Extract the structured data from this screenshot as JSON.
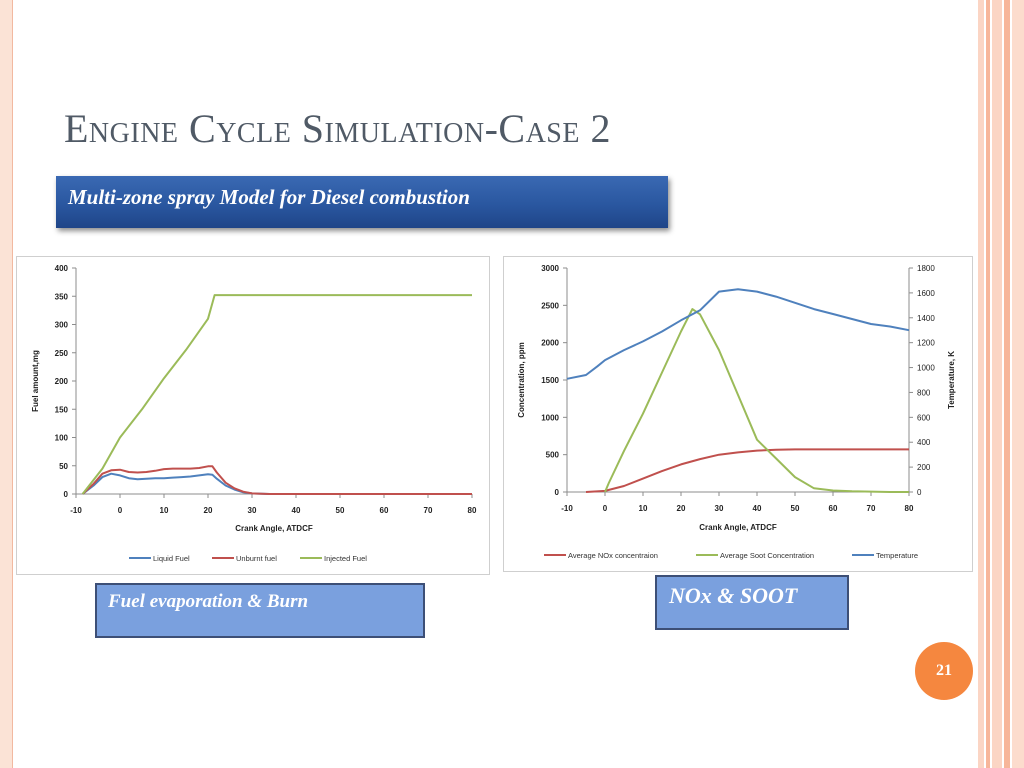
{
  "slide": {
    "title": "Engine Cycle Simulation-Case 2",
    "subtitle": "Multi-zone spray Model for Diesel combustion",
    "caption_left": "Fuel evaporation & Burn",
    "caption_right": "NOx & SOOT",
    "page_number": "21"
  },
  "colors": {
    "accent_orange": "#f5873f",
    "banner_blue": "#2a57a0",
    "caption_fill": "#7aa0de",
    "series_blue": "#4f81bd",
    "series_red": "#c0504d",
    "series_green": "#9bbb59"
  },
  "chart_data": [
    {
      "type": "line",
      "title": "",
      "xlabel": "Crank Angle, ATDCF",
      "ylabel": "Fuel amount,mg",
      "xlim": [
        -10,
        80
      ],
      "ylim": [
        0,
        400
      ],
      "x_ticks": [
        -10,
        0,
        10,
        20,
        30,
        40,
        50,
        60,
        70,
        80
      ],
      "y_ticks": [
        0,
        50,
        100,
        150,
        200,
        250,
        300,
        350,
        400
      ],
      "grid": false,
      "legend_position": "bottom",
      "series": [
        {
          "name": "Liquid Fuel",
          "color": "#4f81bd",
          "x": [
            -8.5,
            -6,
            -4,
            -2,
            0,
            2,
            4,
            6,
            8,
            10,
            12,
            14,
            16,
            18,
            20,
            21,
            22,
            24,
            26,
            28,
            30,
            34,
            40,
            60,
            80
          ],
          "y": [
            0,
            15,
            30,
            36,
            33,
            28,
            26,
            27,
            28,
            28,
            29,
            30,
            31,
            33,
            35,
            34,
            27,
            15,
            8,
            3,
            1,
            0,
            0,
            0,
            0
          ]
        },
        {
          "name": "Unburnt fuel",
          "color": "#c0504d",
          "x": [
            -8.5,
            -6,
            -4,
            -2,
            0,
            2,
            4,
            6,
            8,
            10,
            12,
            14,
            16,
            18,
            20,
            21,
            22,
            24,
            26,
            28,
            30,
            34,
            40,
            60,
            80
          ],
          "y": [
            0,
            18,
            36,
            42,
            43,
            39,
            38,
            39,
            41,
            44,
            45,
            45,
            45,
            46,
            49,
            49,
            38,
            20,
            10,
            4,
            1,
            0,
            0,
            0,
            0
          ]
        },
        {
          "name": "Injected Fuel",
          "color": "#9bbb59",
          "x": [
            -8.5,
            -4,
            0,
            5,
            10,
            15,
            20,
            21.5,
            30,
            50,
            80
          ],
          "y": [
            0,
            45,
            100,
            150,
            205,
            255,
            310,
            352,
            352,
            352,
            352
          ]
        }
      ]
    },
    {
      "type": "line",
      "title": "",
      "xlabel": "Crank Angle, ATDCF",
      "ylabel": "Concentration, ppm",
      "y2label": "Temperature, K",
      "xlim": [
        -10,
        80
      ],
      "ylim": [
        0,
        3000
      ],
      "y2lim": [
        0,
        1800
      ],
      "x_ticks": [
        -10,
        0,
        10,
        20,
        30,
        40,
        50,
        60,
        70,
        80
      ],
      "y_ticks": [
        0,
        500,
        1000,
        1500,
        2000,
        2500,
        3000
      ],
      "y2_ticks": [
        0,
        200,
        400,
        600,
        800,
        1000,
        1200,
        1400,
        1600,
        1800
      ],
      "grid": false,
      "legend_position": "bottom",
      "series": [
        {
          "name": "Average NOx concentraion",
          "axis": "left",
          "color": "#c0504d",
          "x": [
            -5,
            0,
            5,
            10,
            15,
            20,
            25,
            30,
            35,
            40,
            45,
            50,
            60,
            70,
            80
          ],
          "y": [
            0,
            15,
            80,
            180,
            280,
            370,
            440,
            500,
            530,
            555,
            565,
            570,
            570,
            570,
            570
          ]
        },
        {
          "name": "Average Soot Concentration",
          "axis": "left",
          "color": "#9bbb59",
          "x": [
            0,
            1,
            5,
            10,
            15,
            20,
            23,
            25,
            30,
            35,
            40,
            45,
            50,
            55,
            60,
            65,
            70,
            75,
            80
          ],
          "y": [
            0,
            120,
            550,
            1050,
            1600,
            2150,
            2450,
            2380,
            1900,
            1300,
            700,
            450,
            200,
            50,
            20,
            10,
            5,
            0,
            0
          ]
        },
        {
          "name": "Temperature",
          "axis": "right",
          "color": "#4f81bd",
          "x": [
            -10,
            -5,
            -2,
            0,
            5,
            10,
            15,
            20,
            25,
            30,
            35,
            40,
            45,
            50,
            55,
            60,
            65,
            70,
            75,
            80
          ],
          "y": [
            910,
            940,
            1010,
            1060,
            1140,
            1210,
            1290,
            1380,
            1460,
            1610,
            1630,
            1610,
            1570,
            1520,
            1470,
            1430,
            1390,
            1350,
            1330,
            1300
          ]
        }
      ]
    }
  ]
}
